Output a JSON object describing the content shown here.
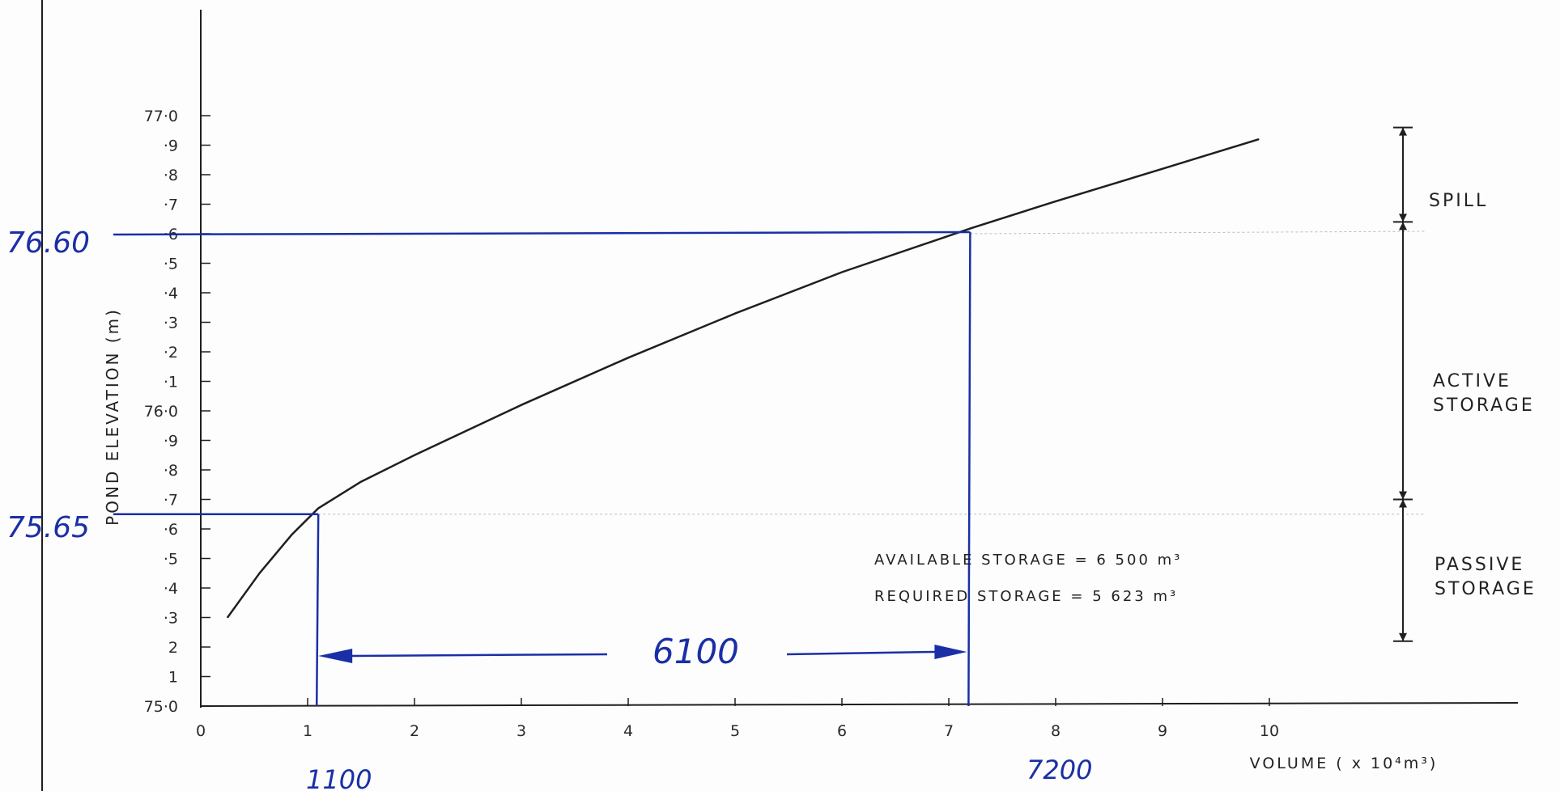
{
  "chart_data": {
    "type": "line",
    "xlabel": "VOLUME ( x 10⁴m³)",
    "ylabel": "POND ELEVATION (m)",
    "xlim": [
      0,
      11
    ],
    "ylim": [
      75.0,
      77.0
    ],
    "x_tick_labels": [
      "0",
      "1",
      "2",
      "3",
      "4",
      "5",
      "6",
      "7",
      "8",
      "9",
      "10"
    ],
    "y_tick_labels": [
      "75·0",
      "1",
      "2",
      "·3",
      "·4",
      "·5",
      "·6",
      "·7",
      "·8",
      "·9",
      "76·0",
      "·1",
      "·2",
      "·3",
      "·4",
      "·5",
      "·6",
      "·7",
      "·8",
      "·9",
      "77·0"
    ],
    "grid": false,
    "series": [
      {
        "x": [
          0.25,
          0.55,
          0.85,
          1.1,
          1.5,
          2.0,
          3.0,
          4.0,
          5.0,
          6.0,
          7.22,
          8.0,
          9.0,
          9.9
        ],
        "y": [
          75.3,
          75.45,
          75.58,
          75.67,
          75.76,
          75.85,
          76.02,
          76.18,
          76.33,
          76.47,
          76.62,
          76.71,
          76.82,
          76.92
        ]
      }
    ],
    "annotations": {
      "zone_labels": [
        "SPILL",
        "ACTIVE STORAGE",
        "PASSIVE STORAGE"
      ],
      "zone_bounds": [
        75.22,
        75.7,
        76.64,
        76.96
      ],
      "available_storage": "AVAILABLE  STORAGE =  6 500 m³",
      "required_storage": "REQUIRED  STORAGE =  5 623 m³",
      "handwritten": {
        "upper_elevation": "76.60",
        "lower_elevation": "75.65",
        "lower_volume": "1100",
        "upper_volume": "7200",
        "difference": "6100"
      },
      "upper_level": {
        "x": 7.2,
        "y": 76.6
      },
      "lower_level": {
        "x": 1.1,
        "y": 75.65
      },
      "arrow_y": 75.17
    },
    "colors": {
      "ink": "#1f1f1f",
      "blue_pen": "#1a2fa6"
    }
  }
}
